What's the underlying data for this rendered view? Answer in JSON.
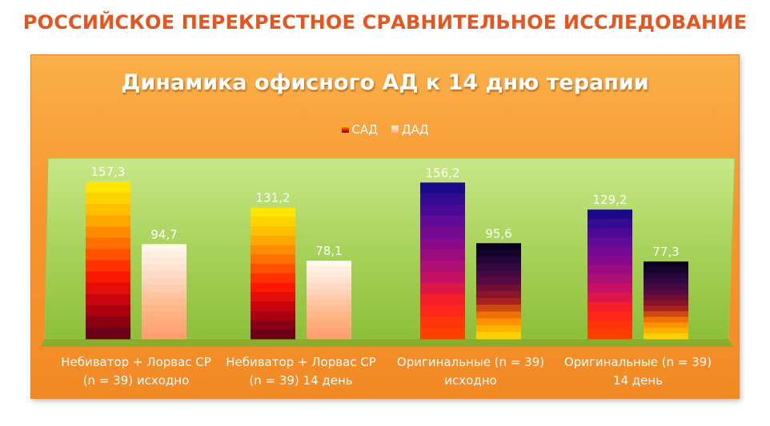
{
  "slide_title": "РОССИЙСКОЕ ПЕРЕКРЕСТНОЕ СРАВНИТЕЛЬНОЕ ИССЛЕДОВАНИЕ",
  "chart_data": {
    "type": "bar",
    "title": "Динамика офисного АД к 14 дню терапии",
    "legend_position": "top",
    "categories": [
      [
        "Небиватор + Лорвас СР",
        "(n = 39) исходно"
      ],
      [
        "Небиватор + Лорвас СР",
        "(n = 39) 14 день"
      ],
      [
        "Оригинальные (n = 39)",
        "исходно"
      ],
      [
        "Оригинальные (n = 39)",
        "14 день"
      ]
    ],
    "series": [
      {
        "name": "САД",
        "values": [
          157.3,
          131.2,
          156.2,
          129.2
        ],
        "labels": [
          "157,3",
          "131,2",
          "156,2",
          "129,2"
        ]
      },
      {
        "name": "ДАД",
        "values": [
          94.7,
          78.1,
          95.6,
          77.3
        ],
        "labels": [
          "94,7",
          "78,1",
          "95,6",
          "77,3"
        ]
      }
    ],
    "ylim": [
      0,
      160
    ],
    "grid": false,
    "colors": {
      "sad_warm": [
        "#ffe600",
        "#ffb400",
        "#ff6a00",
        "#ff1a00",
        "#c00010",
        "#6a0015"
      ],
      "dad_warm": [
        "#fff6ec",
        "#ffd9c4",
        "#ffb98a",
        "#ffa070"
      ],
      "sad_cool": [
        "#1a0a8a",
        "#5a0a9a",
        "#8a0a8a",
        "#c0106a",
        "#ff2020",
        "#ff4000"
      ],
      "dad_cool": [
        "#0a0020",
        "#2a0840",
        "#5a0a40",
        "#a01a20",
        "#ff8000",
        "#ffd000"
      ]
    }
  }
}
